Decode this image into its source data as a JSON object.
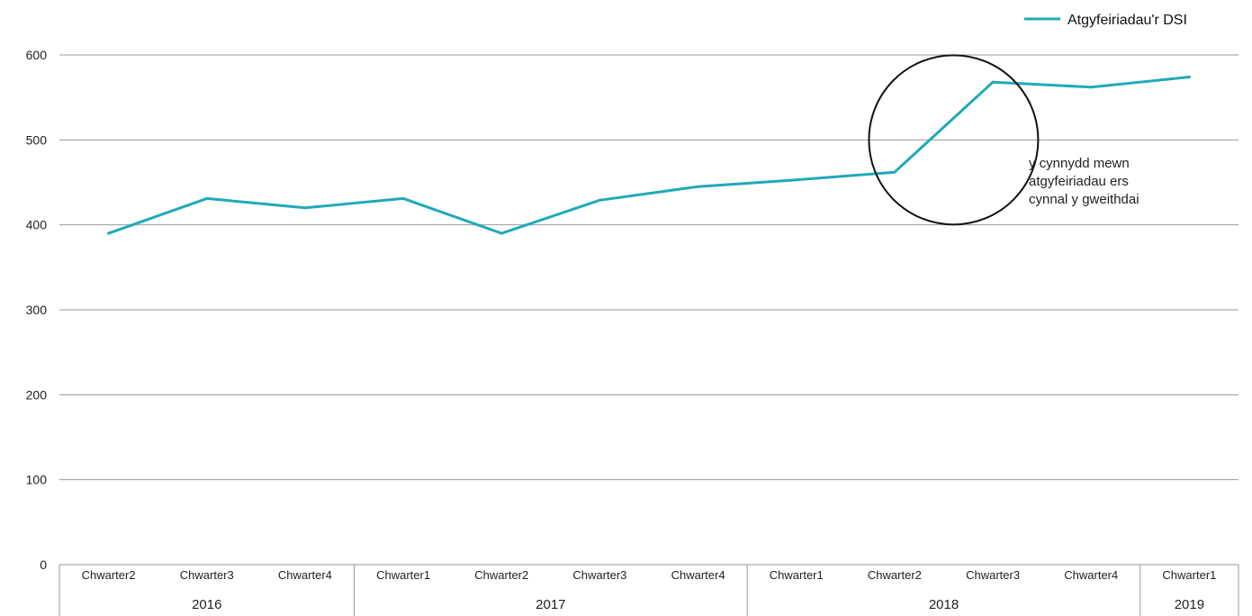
{
  "chart_data": {
    "type": "line",
    "title": "",
    "xlabel": "",
    "ylabel": "",
    "ylim": [
      0,
      600
    ],
    "yticks": [
      0,
      100,
      200,
      300,
      400,
      500,
      600
    ],
    "grid": true,
    "legend_position": "top-right",
    "categories": [
      {
        "quarter": "Chwarter2",
        "year": "2016"
      },
      {
        "quarter": "Chwarter3",
        "year": "2016"
      },
      {
        "quarter": "Chwarter4",
        "year": "2016"
      },
      {
        "quarter": "Chwarter1",
        "year": "2017"
      },
      {
        "quarter": "Chwarter2",
        "year": "2017"
      },
      {
        "quarter": "Chwarter3",
        "year": "2017"
      },
      {
        "quarter": "Chwarter4",
        "year": "2017"
      },
      {
        "quarter": "Chwarter1",
        "year": "2018"
      },
      {
        "quarter": "Chwarter2",
        "year": "2018"
      },
      {
        "quarter": "Chwarter3",
        "year": "2018"
      },
      {
        "quarter": "Chwarter4",
        "year": "2018"
      },
      {
        "quarter": "Chwarter1",
        "year": "2019"
      }
    ],
    "years": [
      "2016",
      "2017",
      "2018",
      "2019"
    ],
    "series": [
      {
        "name": "Atgyfeiriadau'r DSI",
        "color": "#1faab8",
        "values": [
          390,
          431,
          420,
          431,
          390,
          429,
          445,
          453,
          462,
          568,
          562,
          574
        ]
      }
    ],
    "annotation": {
      "lines": [
        "y cynnydd mewn",
        "atgyfeiriadau ers",
        "cynnal y gweithdai"
      ],
      "circle_center": {
        "category_index": 8.6,
        "value": 500
      }
    }
  }
}
